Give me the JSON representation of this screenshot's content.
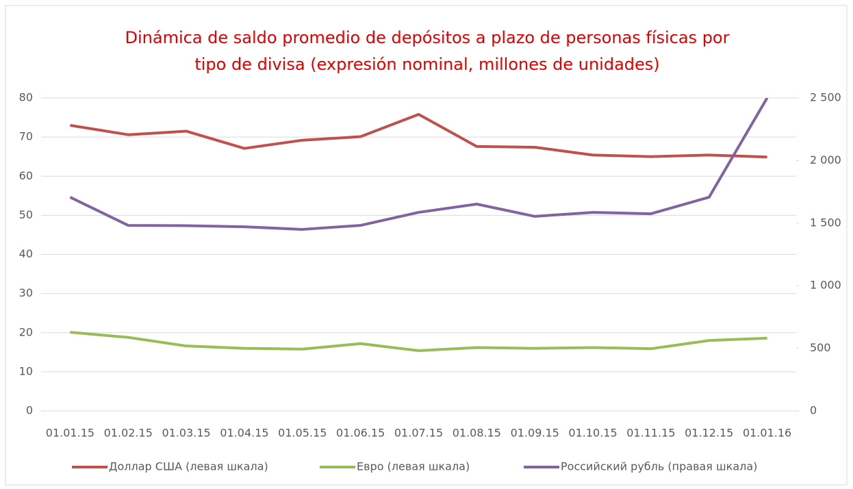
{
  "chart_data": {
    "type": "line",
    "title": [
      "Dinámica de saldo promedio de depósitos a plazo de personas físicas por",
      "tipo de divisa (expresión nominal, millones de unidades)"
    ],
    "categories": [
      "01.01.15",
      "01.02.15",
      "01.03.15",
      "01.04.15",
      "01.05.15",
      "01.06.15",
      "01.07.15",
      "01.08.15",
      "01.09.15",
      "01.10.15",
      "01.11.15",
      "01.12.15",
      "01.01.16"
    ],
    "series": [
      {
        "name": "Доллар США (левая шкала)",
        "color": "#c0504d",
        "values": [
          73.0,
          70.6,
          71.5,
          67.1,
          69.2,
          70.1,
          75.8,
          67.6,
          67.4,
          65.4,
          65.0,
          65.4,
          64.9
        ]
      },
      {
        "name": "Евро (левая шкала)",
        "color": "#9bbb59",
        "values": [
          20.1,
          18.8,
          16.6,
          16.0,
          15.8,
          17.2,
          15.4,
          16.2,
          16.0,
          16.2,
          15.9,
          18.0,
          18.6
        ]
      },
      {
        "name": "Российский рубль (правая шкала)",
        "color": "#8064a2",
        "axis": "y2",
        "values": [
          1707,
          1482,
          1480,
          1471,
          1450,
          1482,
          1586,
          1652,
          1554,
          1586,
          1575,
          1707,
          2500
        ]
      }
    ],
    "ylim": [
      0,
      80
    ],
    "yticks": [
      0,
      10,
      20,
      30,
      40,
      50,
      60,
      70,
      80
    ],
    "y2lim": [
      0,
      2500
    ],
    "y2ticks": [
      0,
      500,
      {
        "value": 1000,
        "label": "1 000"
      },
      {
        "value": 1500,
        "label": "1 500"
      },
      {
        "value": 2000,
        "label": "2 000"
      },
      {
        "value": 2500,
        "label": "2 500"
      }
    ],
    "grid": true,
    "legend": "bottom"
  }
}
